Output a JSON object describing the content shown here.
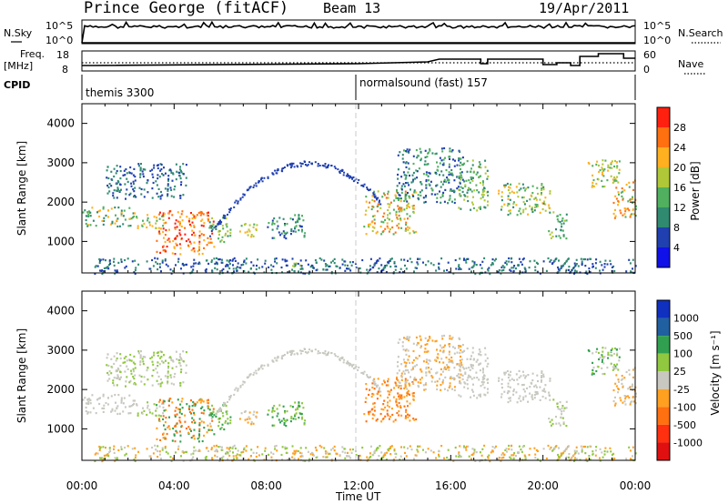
{
  "header": {
    "station": "Prince George (fitACF)",
    "beam": "Beam 13",
    "date": "19/Apr/2011"
  },
  "side_labels": {
    "nsky": "N.Sky",
    "nsearch": "N.Search",
    "freq": "Freq.",
    "freq_unit": "[MHz]",
    "nave": "Nave",
    "cpid": "CPID"
  },
  "cpid": {
    "mode1": "themis 3300",
    "mode2": "normalsound (fast) 157"
  },
  "noise_panel": {
    "left_ticks": [
      "10^5",
      "10^0"
    ],
    "right_ticks": [
      "10^5",
      "10^0"
    ]
  },
  "freq_panel": {
    "left_ticks": [
      "18",
      "8"
    ],
    "right_ticks": [
      "60",
      "0"
    ]
  },
  "chart_data": [
    {
      "type": "heatmap",
      "quantity": "Power",
      "ylabel": "Slant Range [km]",
      "ylim": [
        200,
        4500
      ],
      "yticks": [
        "1000",
        "2000",
        "3000",
        "4000"
      ],
      "colorbar_label": "Power [dB]",
      "colorbar_ticks": [
        "4",
        "8",
        "12",
        "16",
        "20",
        "24",
        "28"
      ],
      "colors": [
        "#1010e8",
        "#2040b0",
        "#308a70",
        "#50b060",
        "#b0c838",
        "#ffb020",
        "#ff7010",
        "#ff2010"
      ]
    },
    {
      "type": "heatmap",
      "quantity": "Velocity",
      "ylabel": "Slant Range [km]",
      "ylim": [
        200,
        4500
      ],
      "yticks": [
        "1000",
        "2000",
        "3000",
        "4000"
      ],
      "colorbar_label": "Velocity [m s⁻¹]",
      "colorbar_ticks": [
        "1000",
        "500",
        "100",
        "25",
        "-25",
        "-100",
        "-500",
        "-1000"
      ],
      "colors": [
        "#1030c0",
        "#2060a0",
        "#30a050",
        "#90c840",
        "#c8c8c0",
        "#ffa020",
        "#ff7010",
        "#ff3010",
        "#e01010"
      ]
    }
  ],
  "time_axis": {
    "xlabel": "Time UT",
    "ticks": [
      "00:00",
      "04:00",
      "08:00",
      "12:00",
      "16:00",
      "20:00",
      "00:00"
    ]
  }
}
